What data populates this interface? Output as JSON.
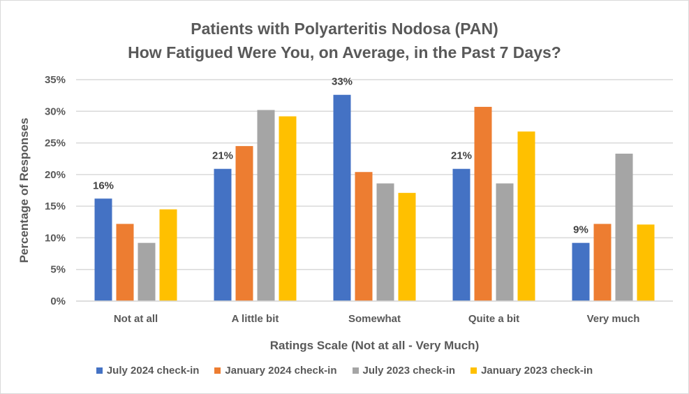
{
  "chart_data": {
    "type": "bar",
    "title_line1": "Patients with Polyarteritis Nodosa (PAN)",
    "title_line2": "How Fatigued Were You, on Average, in the Past 7 Days?",
    "xlabel": "Ratings Scale (Not at all - Very Much)",
    "ylabel": "Percentage of Responses",
    "ylim": [
      0,
      35
    ],
    "yticks": [
      "0%",
      "5%",
      "10%",
      "15%",
      "20%",
      "25%",
      "30%",
      "35%"
    ],
    "grid": true,
    "legend_position": "bottom",
    "categories": [
      "Not at all",
      "A little bit",
      "Somewhat",
      "Quite a bit",
      "Very much"
    ],
    "series": [
      {
        "name": "July 2024 check-in",
        "color": "#4472C4",
        "values": [
          16.2,
          20.9,
          32.6,
          20.9,
          9.2
        ],
        "data_labels": [
          "16%",
          "21%",
          "33%",
          "21%",
          "9%"
        ]
      },
      {
        "name": "January 2024 check-in",
        "color": "#ED7D31",
        "values": [
          12.2,
          24.5,
          20.4,
          30.7,
          12.2
        ]
      },
      {
        "name": "July 2023 check-in",
        "color": "#A5A5A5",
        "values": [
          9.2,
          30.2,
          18.6,
          18.6,
          23.3
        ]
      },
      {
        "name": "January 2023 check-in",
        "color": "#FFC000",
        "values": [
          14.5,
          29.2,
          17.1,
          26.8,
          12.1
        ]
      }
    ]
  }
}
